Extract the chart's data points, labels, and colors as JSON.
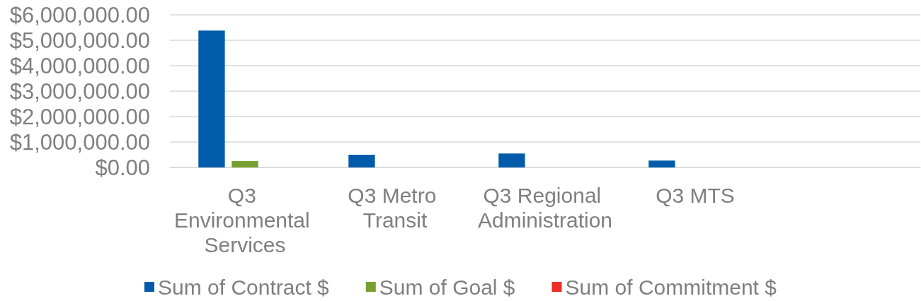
{
  "chart_data": {
    "type": "bar",
    "categories": [
      "Q3 Environmental Services",
      "Q3 Metro Transit",
      "Q3 Regional Administration",
      "Q3 MTS",
      null
    ],
    "series": [
      {
        "name": "Sum of Contract $",
        "color": "#005cab",
        "values": [
          5380000,
          500000,
          550000,
          270000,
          null
        ]
      },
      {
        "name": "Sum of Goal $",
        "color": "#76a130",
        "values": [
          250000,
          0,
          0,
          0,
          null
        ]
      },
      {
        "name": "Sum of Commitment $",
        "color": "#ee2e24",
        "values": [
          0,
          0,
          0,
          0,
          null
        ]
      }
    ],
    "ylim": [
      0,
      6000000
    ],
    "yticks": [
      {
        "value": 0,
        "label": "$0.00"
      },
      {
        "value": 1000000,
        "label": "$1,000,000.00"
      },
      {
        "value": 2000000,
        "label": "$2,000,000.00"
      },
      {
        "value": 3000000,
        "label": "$3,000,000.00"
      },
      {
        "value": 4000000,
        "label": "$4,000,000.00"
      },
      {
        "value": 5000000,
        "label": "$5,000,000.00"
      },
      {
        "value": 6000000,
        "label": "$6,000,000.00"
      }
    ],
    "grid": "y",
    "legend": "bottom"
  }
}
